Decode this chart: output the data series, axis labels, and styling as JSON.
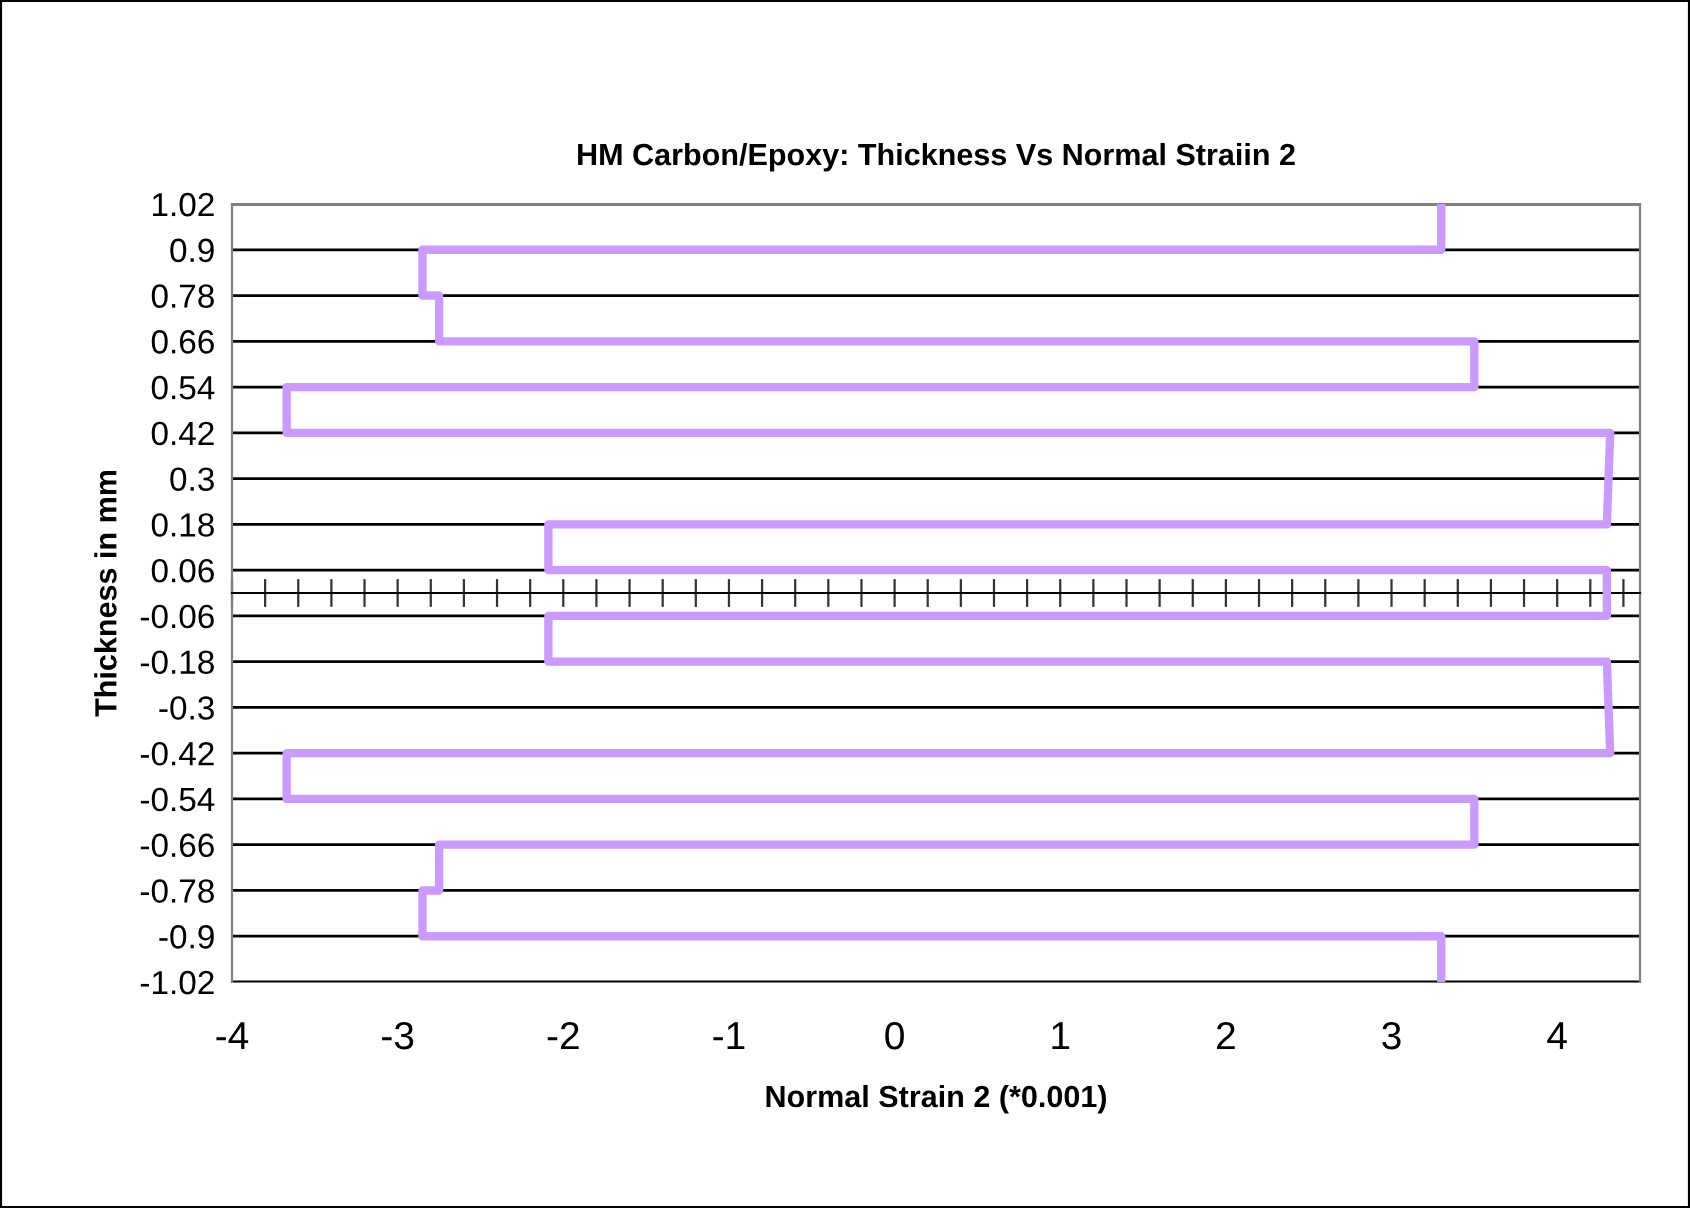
{
  "chart_data": {
    "type": "line",
    "title": "HM Carbon/Epoxy: Thickness Vs Normal Straiin 2",
    "xlabel": "Normal Strain 2 (*0.001)",
    "ylabel": "Thickness in mm",
    "series": [
      {
        "color": "#cc99ff",
        "x": [
          3.3,
          3.3,
          -2.85,
          -2.85,
          -2.75,
          -2.75,
          3.5,
          3.5,
          -3.67,
          -3.67,
          4.32,
          4.3,
          -2.09,
          -2.09,
          4.3,
          4.3,
          -2.09,
          -2.09,
          4.3,
          4.32,
          -3.67,
          -3.67,
          3.5,
          3.5,
          -2.75,
          -2.75,
          -2.85,
          -2.85,
          3.3,
          3.3
        ],
        "values": [
          1.02,
          0.9,
          0.9,
          0.78,
          0.78,
          0.66,
          0.66,
          0.54,
          0.54,
          0.42,
          0.42,
          0.18,
          0.18,
          0.06,
          0.06,
          -0.06,
          -0.06,
          -0.18,
          -0.18,
          -0.42,
          -0.42,
          -0.54,
          -0.54,
          -0.66,
          -0.66,
          -0.78,
          -0.78,
          -0.9,
          -0.9,
          -1.02
        ]
      }
    ],
    "xlim": [
      -4,
      4.5
    ],
    "ylim": [
      -1.02,
      1.02
    ],
    "xticks": [
      -4,
      {
        "value": -3.8,
        "label": null
      },
      {
        "value": -3.6,
        "label": null
      },
      {
        "value": -3.4,
        "label": null
      },
      {
        "value": -3.2,
        "label": null
      },
      -3,
      {
        "value": -2.8,
        "label": null
      },
      {
        "value": -2.6,
        "label": null
      },
      {
        "value": -2.4,
        "label": null
      },
      {
        "value": -2.2,
        "label": null
      },
      -2,
      {
        "value": -1.8,
        "label": null
      },
      {
        "value": -1.6,
        "label": null
      },
      {
        "value": -1.4,
        "label": null
      },
      {
        "value": -1.2,
        "label": null
      },
      -1,
      {
        "value": -0.8,
        "label": null
      },
      {
        "value": -0.6,
        "label": null
      },
      {
        "value": -0.4,
        "label": null
      },
      {
        "value": -0.2,
        "label": null
      },
      0,
      {
        "value": 0.2,
        "label": null
      },
      {
        "value": 0.4,
        "label": null
      },
      {
        "value": 0.6,
        "label": null
      },
      {
        "value": 0.8,
        "label": null
      },
      1,
      {
        "value": 1.2,
        "label": null
      },
      {
        "value": 1.4,
        "label": null
      },
      {
        "value": 1.6,
        "label": null
      },
      {
        "value": 1.8,
        "label": null
      },
      2,
      {
        "value": 2.2,
        "label": null
      },
      {
        "value": 2.4,
        "label": null
      },
      {
        "value": 2.6,
        "label": null
      },
      {
        "value": 2.8,
        "label": null
      },
      3,
      {
        "value": 3.2,
        "label": null
      },
      {
        "value": 3.4,
        "label": null
      },
      {
        "value": 3.6,
        "label": null
      },
      {
        "value": 3.8,
        "label": null
      },
      4,
      {
        "value": 4.2,
        "label": null
      },
      {
        "value": 4.4,
        "label": null
      }
    ],
    "yticks": [
      -1.02,
      -0.9,
      -0.78,
      -0.66,
      -0.54,
      -0.42,
      -0.3,
      -0.18,
      -0.06,
      0.06,
      0.18,
      0.3,
      0.42,
      0.54,
      0.66,
      0.78,
      0.9,
      1.02
    ],
    "grid": "y",
    "marker": "none",
    "line_style": "solid",
    "legend": false
  }
}
